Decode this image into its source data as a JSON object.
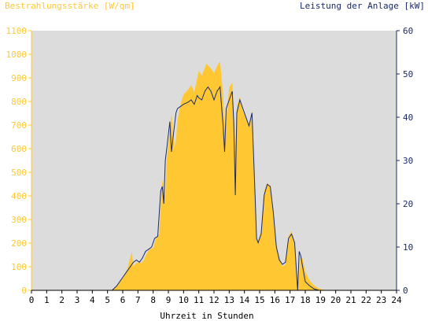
{
  "chart_data": {
    "type": "area",
    "title_left": "Bestrahlungsstärke [W/qm]",
    "title_right": "Leistung der Anlage [kW]",
    "xlabel": "Uhrzeit in Stunden",
    "x_ticks": [
      "0",
      "1",
      "2",
      "3",
      "4",
      "5",
      "6",
      "7",
      "8",
      "9",
      "10",
      "11",
      "12",
      "13",
      "14",
      "15",
      "16",
      "17",
      "18",
      "19",
      "20",
      "21",
      "22",
      "23",
      "24"
    ],
    "y_left_ticks": [
      "0",
      "100",
      "200",
      "300",
      "400",
      "500",
      "600",
      "700",
      "800",
      "900",
      "1000",
      "1100"
    ],
    "y_right_ticks": [
      "0",
      "10",
      "20",
      "30",
      "40",
      "50",
      "60"
    ],
    "xlim": [
      0,
      24
    ],
    "ylim_left": [
      0,
      1100
    ],
    "ylim_right": [
      0,
      60
    ],
    "grid": false,
    "colors": {
      "plot_bg": "#dcdcdc",
      "irradiance_fill": "#ffc833",
      "power_line": "#1a2a6c",
      "left_axis": "#ffc833",
      "right_axis": "#1a2a6c",
      "x_axis": "#000000"
    },
    "series": [
      {
        "kind": "irradiance",
        "axis": "left",
        "x": [
          5.3,
          5.6,
          6.0,
          6.3,
          6.5,
          6.6,
          6.7,
          6.8,
          7.0,
          7.2,
          7.4,
          7.6,
          7.8,
          8.0,
          8.2,
          8.4,
          8.6,
          8.8,
          8.9,
          9.1,
          9.2,
          9.4,
          9.5,
          9.6,
          9.8,
          10.0,
          10.3,
          10.5,
          10.7,
          10.9,
          11.0,
          11.2,
          11.5,
          11.8,
          12.0,
          12.2,
          12.4,
          12.6,
          12.7,
          12.8,
          13.0,
          13.2,
          13.3,
          13.4,
          13.5,
          13.7,
          13.9,
          14.1,
          14.3,
          14.5,
          14.7,
          14.8,
          14.9,
          15.0,
          15.1,
          15.3,
          15.5,
          15.7,
          15.9,
          16.1,
          16.3,
          16.5,
          16.7,
          16.9,
          17.1,
          17.3,
          17.5,
          17.7,
          17.8,
          17.9,
          18.0,
          18.3,
          18.6,
          18.9,
          19.2,
          19.5
        ],
        "y": [
          0,
          20,
          50,
          90,
          140,
          165,
          100,
          110,
          120,
          115,
          130,
          160,
          175,
          180,
          220,
          240,
          470,
          400,
          560,
          680,
          750,
          600,
          640,
          720,
          790,
          830,
          850,
          870,
          840,
          900,
          930,
          910,
          960,
          940,
          920,
          950,
          970,
          830,
          700,
          720,
          860,
          880,
          760,
          620,
          780,
          820,
          760,
          730,
          700,
          760,
          400,
          220,
          210,
          230,
          250,
          420,
          455,
          440,
          340,
          190,
          140,
          100,
          110,
          230,
          250,
          200,
          0,
          150,
          140,
          110,
          80,
          40,
          20,
          8,
          2,
          0
        ]
      },
      {
        "kind": "power",
        "axis": "right",
        "x": [
          5.3,
          5.6,
          6.0,
          6.3,
          6.5,
          6.7,
          6.9,
          7.1,
          7.3,
          7.5,
          7.7,
          7.9,
          8.1,
          8.3,
          8.5,
          8.6,
          8.7,
          8.8,
          8.9,
          9.0,
          9.1,
          9.2,
          9.3,
          9.4,
          9.5,
          9.6,
          9.8,
          10.0,
          10.3,
          10.5,
          10.7,
          10.9,
          11.0,
          11.2,
          11.4,
          11.6,
          11.8,
          12.0,
          12.2,
          12.4,
          12.6,
          12.7,
          12.8,
          13.0,
          13.2,
          13.3,
          13.4,
          13.5,
          13.7,
          13.9,
          14.1,
          14.3,
          14.5,
          14.7,
          14.8,
          14.9,
          15.0,
          15.1,
          15.3,
          15.5,
          15.7,
          15.9,
          16.1,
          16.3,
          16.5,
          16.7,
          16.9,
          17.1,
          17.3,
          17.5,
          17.6,
          17.7,
          17.8,
          17.9,
          18.0,
          18.3,
          18.6,
          18.9,
          19.2,
          19.5
        ],
        "y": [
          0,
          1,
          3,
          4.5,
          5.5,
          6.5,
          7,
          6.5,
          7.5,
          9,
          9.5,
          10,
          12,
          12.5,
          23,
          24,
          20,
          30,
          33,
          36,
          39,
          32,
          35,
          38,
          41,
          42,
          42.5,
          43,
          43.5,
          44,
          43,
          45,
          44.5,
          44,
          46,
          47,
          46,
          44,
          46,
          47,
          38,
          32,
          42,
          44,
          46,
          39,
          22,
          41,
          44,
          42,
          40,
          38,
          41,
          22,
          12,
          11,
          12,
          13,
          22,
          24.5,
          24,
          18,
          10,
          7,
          6,
          6.5,
          12,
          13,
          11,
          0,
          9,
          8,
          6,
          4,
          2,
          1,
          0.3,
          0,
          0,
          0
        ]
      }
    ]
  }
}
